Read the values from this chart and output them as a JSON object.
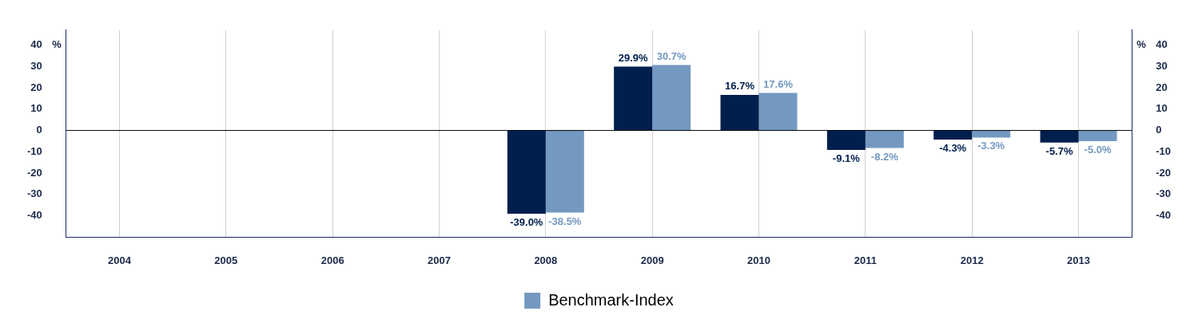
{
  "chart_data": {
    "type": "bar",
    "categories": [
      "2004",
      "2005",
      "2006",
      "2007",
      "2008",
      "2009",
      "2010",
      "2011",
      "2012",
      "2013"
    ],
    "series": [
      {
        "color": "#001f4d",
        "values": [
          null,
          null,
          null,
          null,
          -39.0,
          29.9,
          16.7,
          -9.1,
          -4.3,
          -5.7
        ],
        "value_labels": [
          null,
          null,
          null,
          null,
          "-39.0%",
          "29.9%",
          "16.7%",
          "-9.1%",
          "-4.3%",
          "-5.7%"
        ]
      },
      {
        "name": "Benchmark-Index",
        "color": "#7399c0",
        "values": [
          null,
          null,
          null,
          null,
          -38.5,
          30.7,
          17.6,
          -8.2,
          -3.3,
          -5.0
        ],
        "value_labels": [
          null,
          null,
          null,
          null,
          "-38.5%",
          "30.7%",
          "17.6%",
          "-8.2%",
          "-3.3%",
          "-5.0%"
        ]
      }
    ],
    "ylabel": "%",
    "y2label": "%",
    "ylim": [
      -50,
      47
    ],
    "yticks": [
      -40,
      -30,
      -20,
      -10,
      0,
      10,
      20,
      30,
      40
    ],
    "y2lim": [
      -50,
      47
    ],
    "y2ticks": [
      -40,
      -30,
      -20,
      -10,
      0,
      10,
      20,
      30,
      40
    ],
    "ref_lines": [
      {
        "axis": "y",
        "value": 0,
        "color": "#000000"
      }
    ],
    "grid": "x",
    "legend": "bottom"
  }
}
